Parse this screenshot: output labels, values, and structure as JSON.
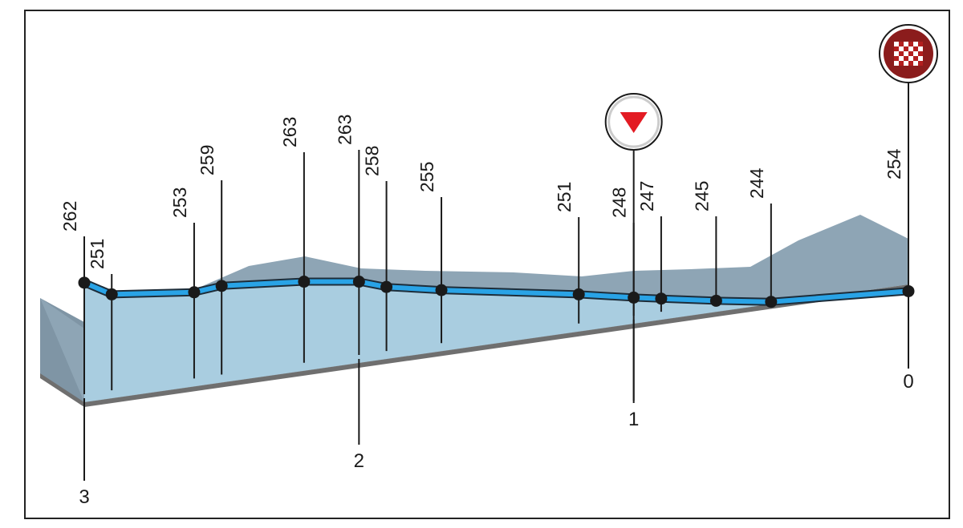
{
  "colors": {
    "frame": "#222222",
    "profile_fill": "#a9cde0",
    "profile_back": "#8ea5b5",
    "profile_side": "#7f95a5",
    "route_line": "#29a3e6",
    "route_outline": "#1d2d3a",
    "base_gray": "#6f6f6f",
    "marker_red": "#e31b23",
    "finish_dark_red": "#8b1c1c"
  },
  "icons": {
    "sprint_marker": "red-down-triangle-icon",
    "finish_marker": "checkered-flag-icon"
  },
  "chart_data": {
    "type": "line",
    "title": "",
    "xlabel": "",
    "ylabel": "",
    "x_direction": "descending km to finish",
    "points": [
      {
        "km": 3.0,
        "alt": 262
      },
      {
        "km": 2.9,
        "alt": 251
      },
      {
        "km": 2.6,
        "alt": 253
      },
      {
        "km": 2.5,
        "alt": 259
      },
      {
        "km": 2.2,
        "alt": 263
      },
      {
        "km": 2.0,
        "alt": 263
      },
      {
        "km": 1.9,
        "alt": 258
      },
      {
        "km": 1.7,
        "alt": 255
      },
      {
        "km": 1.2,
        "alt": 251
      },
      {
        "km": 1.0,
        "alt": 248
      },
      {
        "km": 0.9,
        "alt": 247
      },
      {
        "km": 0.7,
        "alt": 245
      },
      {
        "km": 0.5,
        "alt": 244
      },
      {
        "km": 0.0,
        "alt": 254
      }
    ],
    "km_ticks": [
      "3",
      "2",
      "1",
      "0"
    ],
    "markers": [
      {
        "type": "intermediate",
        "km": 1.0,
        "icon": "red-down-triangle-icon"
      },
      {
        "type": "finish",
        "km": 0.0,
        "icon": "checkered-flag-icon"
      }
    ]
  }
}
